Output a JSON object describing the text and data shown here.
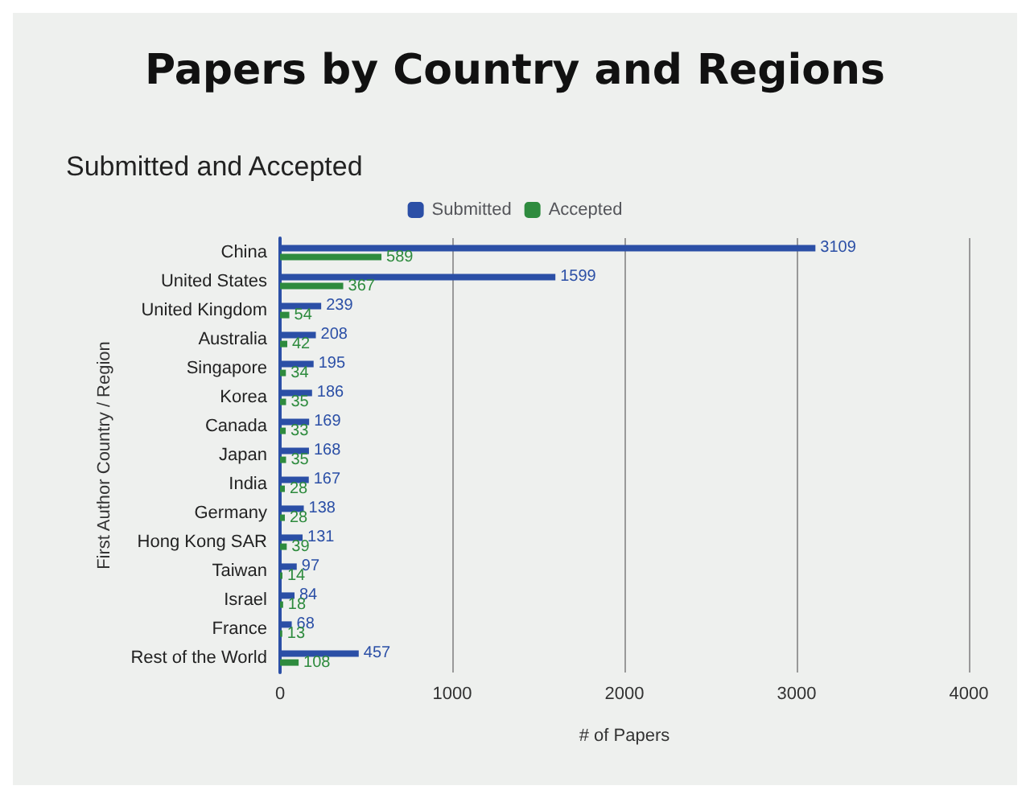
{
  "chart_data": {
    "type": "bar",
    "title": "Papers by Country and Regions",
    "subtitle": "Submitted and Accepted",
    "orientation": "horizontal",
    "xlabel": "# of Papers",
    "ylabel": "First Author Country / Region",
    "categories": [
      "China",
      "United States",
      "United Kingdom",
      "Australia",
      "Singapore",
      "Korea",
      "Canada",
      "Japan",
      "India",
      "Germany",
      "Hong Kong SAR",
      "Taiwan",
      "Israel",
      "France",
      "Rest of the World"
    ],
    "series": [
      {
        "name": "Submitted",
        "color": "#2b4fa6",
        "values": [
          3109,
          1599,
          239,
          208,
          195,
          186,
          169,
          168,
          167,
          138,
          131,
          97,
          84,
          68,
          457
        ]
      },
      {
        "name": "Accepted",
        "color": "#2e8b3e",
        "values": [
          589,
          367,
          54,
          42,
          34,
          35,
          33,
          35,
          28,
          28,
          39,
          14,
          18,
          13,
          108
        ]
      }
    ],
    "xlim": [
      0,
      4000
    ],
    "xticks": [
      0,
      1000,
      2000,
      3000,
      4000
    ],
    "grid": "x",
    "legend": "top",
    "data_labels": true
  }
}
